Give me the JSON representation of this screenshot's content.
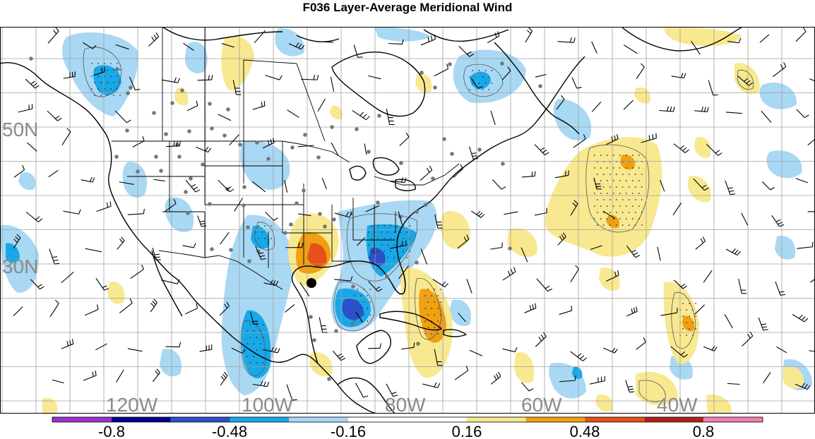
{
  "title": "F036 Layer-Average Meridional Wind",
  "map": {
    "latitude_labels": [
      "50N",
      "30N"
    ],
    "longitude_labels": [
      "120W",
      "100W",
      "80W",
      "60W",
      "40W"
    ],
    "gridlines": true,
    "layers": [
      "filled contours",
      "contour lines",
      "wind barbs",
      "station dots",
      "coastlines",
      "state and province borders",
      "stippling"
    ]
  },
  "colorbar": {
    "tick_labels": [
      "-0.8",
      "-0.48",
      "-0.16",
      "0.16",
      "0.48",
      "0.8"
    ],
    "colors": [
      "#9b30d0",
      "#00008b",
      "#2b50c8",
      "#18a8e8",
      "#a8d8f4",
      "#ffffff",
      "#ffffff",
      "#f8e890",
      "#f0a010",
      "#e8501a",
      "#b02020",
      "#f080b0"
    ]
  },
  "colors": {
    "positive_light": "#f8e890",
    "positive_mid": "#f0a010",
    "positive_strong": "#e8501a",
    "negative_light": "#a8d8f4",
    "negative_mid": "#18a8e8",
    "negative_strong": "#2b50c8"
  }
}
